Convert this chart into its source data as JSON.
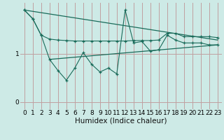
{
  "xlabel": "Humidex (Indice chaleur)",
  "background_color": "#cdeae6",
  "grid_color": "#c0a0a0",
  "line_color": "#1a6b5a",
  "x_min": -0.5,
  "x_max": 23.5,
  "y_min": -0.15,
  "y_max": 2.05,
  "yticks": [
    0,
    1
  ],
  "xticks": [
    0,
    1,
    2,
    3,
    4,
    5,
    6,
    7,
    8,
    9,
    10,
    11,
    12,
    13,
    14,
    15,
    16,
    17,
    18,
    19,
    20,
    21,
    22,
    23
  ],
  "upper_line_x": [
    0,
    1,
    2,
    3,
    4,
    5,
    6,
    7,
    8,
    9,
    10,
    11,
    12,
    13,
    14,
    15,
    16,
    17,
    18,
    19,
    20,
    21,
    22,
    23
  ],
  "upper_line_y": [
    1.9,
    1.72,
    1.38,
    1.3,
    1.28,
    1.27,
    1.26,
    1.26,
    1.26,
    1.26,
    1.26,
    1.26,
    1.26,
    1.27,
    1.27,
    1.27,
    1.28,
    1.42,
    1.42,
    1.35,
    1.35,
    1.35,
    1.35,
    1.33
  ],
  "lower_line_x": [
    0,
    1,
    2,
    3,
    4,
    5,
    6,
    7,
    8,
    9,
    10,
    11,
    12,
    13,
    14,
    15,
    16,
    17,
    18,
    19,
    20,
    21,
    22,
    23
  ],
  "lower_line_y": [
    1.9,
    1.72,
    1.38,
    0.88,
    0.65,
    0.45,
    0.7,
    1.02,
    0.78,
    0.62,
    0.7,
    0.58,
    1.9,
    1.22,
    1.25,
    1.05,
    1.08,
    1.38,
    1.28,
    1.22,
    1.22,
    1.22,
    1.18,
    1.18
  ],
  "trend1_x": [
    0,
    23
  ],
  "trend1_y": [
    1.9,
    1.28
  ],
  "trend2_x": [
    3,
    23
  ],
  "trend2_y": [
    0.88,
    1.18
  ],
  "tick_fontsize": 6.5,
  "xlabel_fontsize": 7.5
}
